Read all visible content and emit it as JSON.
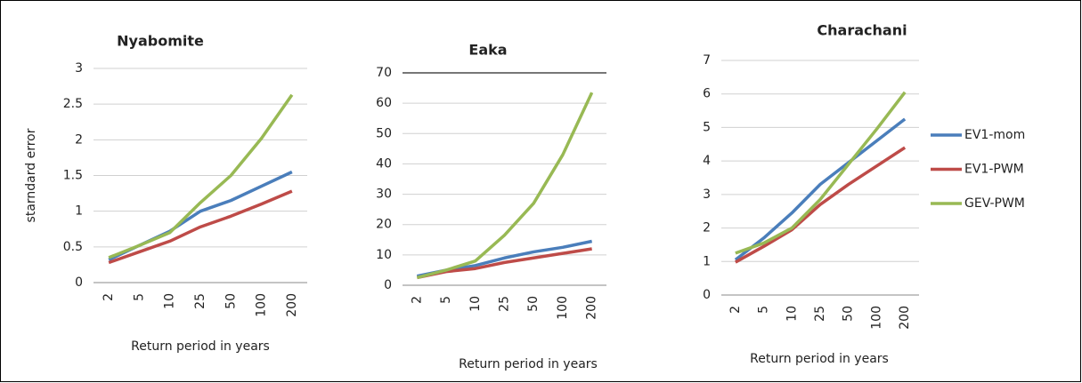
{
  "chart_data": [
    {
      "type": "line",
      "title": "Nyabomite",
      "y_label": "starndard error",
      "x_label": "Return period in years",
      "categories": [
        "2",
        "5",
        "10",
        "25",
        "50",
        "100",
        "200"
      ],
      "ylim": [
        0,
        3
      ],
      "yticks": [
        0,
        0.5,
        1,
        1.5,
        2,
        2.5,
        3
      ],
      "grid": true,
      "series": [
        {
          "color": "#4a7ebb",
          "values": [
            0.32,
            0.52,
            0.72,
            1.0,
            1.15,
            1.35,
            1.55
          ]
        },
        {
          "color": "#be4b48",
          "values": [
            0.28,
            0.43,
            0.58,
            0.78,
            0.93,
            1.1,
            1.28
          ]
        },
        {
          "color": "#98b954",
          "values": [
            0.35,
            0.52,
            0.7,
            1.12,
            1.5,
            2.02,
            2.63
          ]
        }
      ]
    },
    {
      "type": "line",
      "title": "Eaka",
      "x_label": "Return period in years",
      "categories": [
        "2",
        "5",
        "10",
        "25",
        "50",
        "100",
        "200"
      ],
      "ylim": [
        0,
        70
      ],
      "yticks": [
        0,
        10,
        20,
        30,
        40,
        50,
        60,
        70
      ],
      "grid": true,
      "series": [
        {
          "color": "#4a7ebb",
          "values": [
            3,
            5,
            6.5,
            9,
            11,
            12.5,
            14.5
          ]
        },
        {
          "color": "#be4b48",
          "values": [
            2.5,
            4.5,
            5.5,
            7.5,
            9,
            10.5,
            12
          ]
        },
        {
          "color": "#98b954",
          "values": [
            2.5,
            5,
            8,
            16.5,
            27,
            43,
            63.5
          ]
        }
      ]
    },
    {
      "type": "line",
      "title": "Charachani",
      "x_label": "Return period in years",
      "categories": [
        "2",
        "5",
        "10",
        "25",
        "50",
        "100",
        "200"
      ],
      "ylim": [
        0,
        7
      ],
      "yticks": [
        0,
        1,
        2,
        3,
        4,
        5,
        6,
        7
      ],
      "grid": true,
      "legend": "right",
      "series": [
        {
          "name": "EV1-mom",
          "color": "#4a7ebb",
          "values": [
            1.05,
            1.7,
            2.45,
            3.3,
            3.95,
            4.6,
            5.25
          ]
        },
        {
          "name": "EV1-PWM",
          "color": "#be4b48",
          "values": [
            0.98,
            1.45,
            1.95,
            2.7,
            3.3,
            3.85,
            4.4
          ]
        },
        {
          "name": "GEV-PWM",
          "color": "#98b954",
          "values": [
            1.25,
            1.55,
            2.0,
            2.85,
            3.9,
            4.95,
            6.05
          ]
        }
      ]
    }
  ]
}
